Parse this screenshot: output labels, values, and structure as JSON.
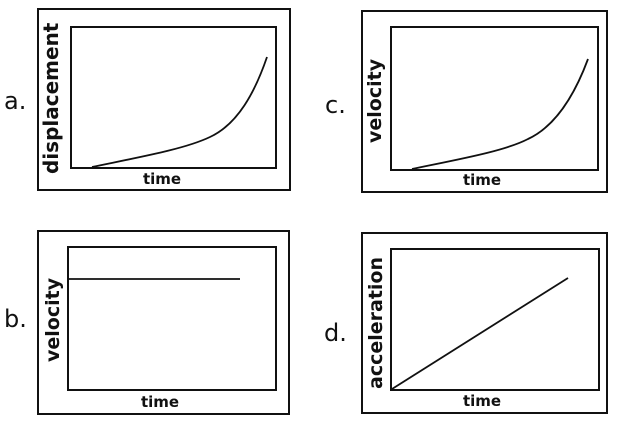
{
  "options": [
    {
      "letter": "a.",
      "xlabel": "time",
      "ylabel": "displacement"
    },
    {
      "letter": "b.",
      "xlabel": "time",
      "ylabel": "velocity"
    },
    {
      "letter": "c.",
      "xlabel": "time",
      "ylabel": "velocity"
    },
    {
      "letter": "d.",
      "xlabel": "time",
      "ylabel": "acceleration"
    }
  ],
  "chart_data": [
    {
      "type": "line",
      "title": "",
      "xlabel": "time",
      "ylabel": "displacement",
      "shape": "increasing-curve",
      "grid": false
    },
    {
      "type": "line",
      "title": "",
      "xlabel": "time",
      "ylabel": "velocity",
      "shape": "horizontal-line",
      "grid": false
    },
    {
      "type": "line",
      "title": "",
      "xlabel": "time",
      "ylabel": "velocity",
      "shape": "increasing-curve",
      "grid": false
    },
    {
      "type": "line",
      "title": "",
      "xlabel": "time",
      "ylabel": "acceleration",
      "shape": "straight-line-from-origin",
      "grid": false
    }
  ]
}
